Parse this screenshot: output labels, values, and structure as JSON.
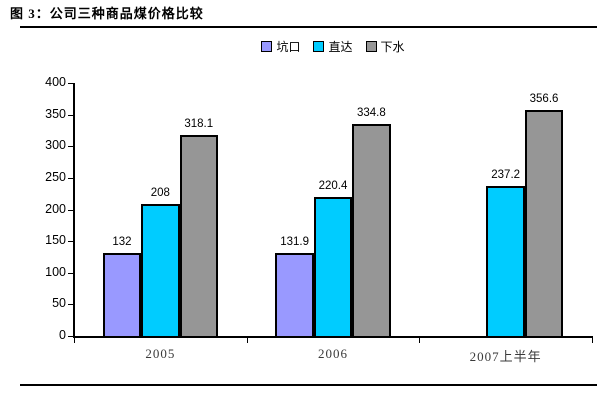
{
  "figure": {
    "title": "图 3：公司三种商品煤价格比较"
  },
  "chart_data": {
    "type": "bar",
    "title": "图 3：公司三种商品煤价格比较",
    "categories": [
      "2005",
      "2006",
      "2007上半年"
    ],
    "series": [
      {
        "name": "坑口",
        "color": "#9999FF",
        "values": [
          132,
          131.9,
          null
        ]
      },
      {
        "name": "直达",
        "color": "#00CCFF",
        "values": [
          208,
          220.4,
          237.2
        ]
      },
      {
        "name": "下水",
        "color": "#969696",
        "values": [
          318.1,
          334.8,
          356.6
        ]
      }
    ],
    "xlabel": "",
    "ylabel": "",
    "ylim": [
      0,
      400
    ],
    "ytick_step": 50,
    "grid": false,
    "legend_position": "top-center",
    "value_labels_shown": true,
    "bar_border_color": "#000000",
    "background_color": "#FFFFFF"
  }
}
